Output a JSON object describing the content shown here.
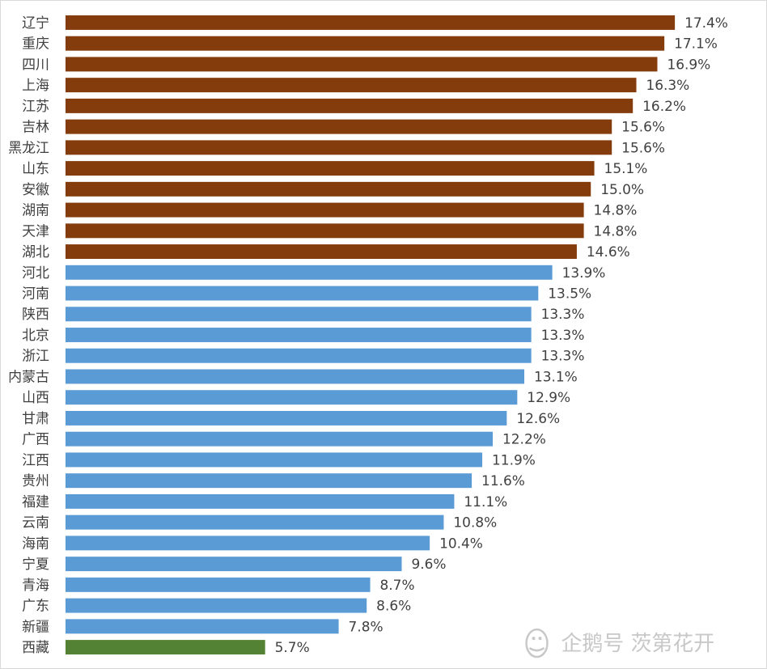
{
  "chart_data": {
    "type": "bar",
    "orientation": "horizontal",
    "categories": [
      "辽宁",
      "重庆",
      "四川",
      "上海",
      "江苏",
      "吉林",
      "黑龙江",
      "山东",
      "安徽",
      "湖南",
      "天津",
      "湖北",
      "河北",
      "河南",
      "陕西",
      "北京",
      "浙江",
      "内蒙古",
      "山西",
      "甘肃",
      "广西",
      "江西",
      "贵州",
      "福建",
      "云南",
      "海南",
      "宁夏",
      "青海",
      "广东",
      "新疆",
      "西藏"
    ],
    "values": [
      17.4,
      17.1,
      16.9,
      16.3,
      16.2,
      15.6,
      15.6,
      15.1,
      15.0,
      14.8,
      14.8,
      14.6,
      13.9,
      13.5,
      13.3,
      13.3,
      13.3,
      13.1,
      12.9,
      12.6,
      12.2,
      11.9,
      11.6,
      11.1,
      10.8,
      10.4,
      9.6,
      8.7,
      8.6,
      7.8,
      5.7
    ],
    "value_labels": [
      "17.4%",
      "17.1%",
      "16.9%",
      "16.3%",
      "16.2%",
      "15.6%",
      "15.6%",
      "15.1%",
      "15.0%",
      "14.8%",
      "14.8%",
      "14.6%",
      "13.9%",
      "13.5%",
      "13.3%",
      "13.3%",
      "13.3%",
      "13.1%",
      "12.9%",
      "12.6%",
      "12.2%",
      "11.9%",
      "11.6%",
      "11.1%",
      "10.8%",
      "10.4%",
      "9.6%",
      "8.7%",
      "8.6%",
      "7.8%",
      "5.7%"
    ],
    "groups": [
      "high",
      "high",
      "high",
      "high",
      "high",
      "high",
      "high",
      "high",
      "high",
      "high",
      "high",
      "high",
      "mid",
      "mid",
      "mid",
      "mid",
      "mid",
      "mid",
      "mid",
      "mid",
      "mid",
      "mid",
      "mid",
      "mid",
      "mid",
      "mid",
      "mid",
      "mid",
      "mid",
      "mid",
      "low"
    ],
    "colors": {
      "high": "#843c0c",
      "mid": "#5b9bd5",
      "low": "#548235"
    },
    "xlim": [
      0,
      17.4
    ],
    "grid": false,
    "title": "",
    "xlabel": "",
    "ylabel": ""
  },
  "watermark": {
    "icon": "penguin-logo-icon",
    "text": "企鹅号 茨第花开"
  }
}
